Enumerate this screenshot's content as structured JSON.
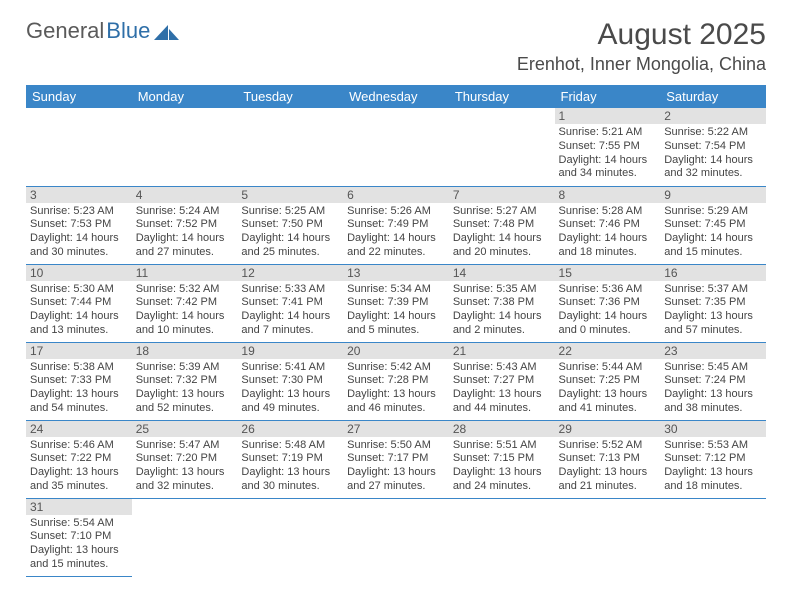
{
  "logo": {
    "text1": "General",
    "text2": "Blue"
  },
  "title": "August 2025",
  "location": "Erenhot, Inner Mongolia, China",
  "colors": {
    "header_bg": "#3a86c8",
    "header_text": "#ffffff",
    "daynum_bg": "#e2e2e2",
    "row_divider": "#3a86c8",
    "logo_gray": "#5a5a5a",
    "logo_blue": "#2f6fa8"
  },
  "typography": {
    "title_fontsize": 30,
    "location_fontsize": 18,
    "header_fontsize": 13,
    "daynum_fontsize": 12,
    "body_fontsize": 11
  },
  "weekdays": [
    "Sunday",
    "Monday",
    "Tuesday",
    "Wednesday",
    "Thursday",
    "Friday",
    "Saturday"
  ],
  "lead_empty": 5,
  "trail_empty": 6,
  "days": [
    {
      "n": "1",
      "sunrise": "Sunrise: 5:21 AM",
      "sunset": "Sunset: 7:55 PM",
      "daylight": "Daylight: 14 hours and 34 minutes."
    },
    {
      "n": "2",
      "sunrise": "Sunrise: 5:22 AM",
      "sunset": "Sunset: 7:54 PM",
      "daylight": "Daylight: 14 hours and 32 minutes."
    },
    {
      "n": "3",
      "sunrise": "Sunrise: 5:23 AM",
      "sunset": "Sunset: 7:53 PM",
      "daylight": "Daylight: 14 hours and 30 minutes."
    },
    {
      "n": "4",
      "sunrise": "Sunrise: 5:24 AM",
      "sunset": "Sunset: 7:52 PM",
      "daylight": "Daylight: 14 hours and 27 minutes."
    },
    {
      "n": "5",
      "sunrise": "Sunrise: 5:25 AM",
      "sunset": "Sunset: 7:50 PM",
      "daylight": "Daylight: 14 hours and 25 minutes."
    },
    {
      "n": "6",
      "sunrise": "Sunrise: 5:26 AM",
      "sunset": "Sunset: 7:49 PM",
      "daylight": "Daylight: 14 hours and 22 minutes."
    },
    {
      "n": "7",
      "sunrise": "Sunrise: 5:27 AM",
      "sunset": "Sunset: 7:48 PM",
      "daylight": "Daylight: 14 hours and 20 minutes."
    },
    {
      "n": "8",
      "sunrise": "Sunrise: 5:28 AM",
      "sunset": "Sunset: 7:46 PM",
      "daylight": "Daylight: 14 hours and 18 minutes."
    },
    {
      "n": "9",
      "sunrise": "Sunrise: 5:29 AM",
      "sunset": "Sunset: 7:45 PM",
      "daylight": "Daylight: 14 hours and 15 minutes."
    },
    {
      "n": "10",
      "sunrise": "Sunrise: 5:30 AM",
      "sunset": "Sunset: 7:44 PM",
      "daylight": "Daylight: 14 hours and 13 minutes."
    },
    {
      "n": "11",
      "sunrise": "Sunrise: 5:32 AM",
      "sunset": "Sunset: 7:42 PM",
      "daylight": "Daylight: 14 hours and 10 minutes."
    },
    {
      "n": "12",
      "sunrise": "Sunrise: 5:33 AM",
      "sunset": "Sunset: 7:41 PM",
      "daylight": "Daylight: 14 hours and 7 minutes."
    },
    {
      "n": "13",
      "sunrise": "Sunrise: 5:34 AM",
      "sunset": "Sunset: 7:39 PM",
      "daylight": "Daylight: 14 hours and 5 minutes."
    },
    {
      "n": "14",
      "sunrise": "Sunrise: 5:35 AM",
      "sunset": "Sunset: 7:38 PM",
      "daylight": "Daylight: 14 hours and 2 minutes."
    },
    {
      "n": "15",
      "sunrise": "Sunrise: 5:36 AM",
      "sunset": "Sunset: 7:36 PM",
      "daylight": "Daylight: 14 hours and 0 minutes."
    },
    {
      "n": "16",
      "sunrise": "Sunrise: 5:37 AM",
      "sunset": "Sunset: 7:35 PM",
      "daylight": "Daylight: 13 hours and 57 minutes."
    },
    {
      "n": "17",
      "sunrise": "Sunrise: 5:38 AM",
      "sunset": "Sunset: 7:33 PM",
      "daylight": "Daylight: 13 hours and 54 minutes."
    },
    {
      "n": "18",
      "sunrise": "Sunrise: 5:39 AM",
      "sunset": "Sunset: 7:32 PM",
      "daylight": "Daylight: 13 hours and 52 minutes."
    },
    {
      "n": "19",
      "sunrise": "Sunrise: 5:41 AM",
      "sunset": "Sunset: 7:30 PM",
      "daylight": "Daylight: 13 hours and 49 minutes."
    },
    {
      "n": "20",
      "sunrise": "Sunrise: 5:42 AM",
      "sunset": "Sunset: 7:28 PM",
      "daylight": "Daylight: 13 hours and 46 minutes."
    },
    {
      "n": "21",
      "sunrise": "Sunrise: 5:43 AM",
      "sunset": "Sunset: 7:27 PM",
      "daylight": "Daylight: 13 hours and 44 minutes."
    },
    {
      "n": "22",
      "sunrise": "Sunrise: 5:44 AM",
      "sunset": "Sunset: 7:25 PM",
      "daylight": "Daylight: 13 hours and 41 minutes."
    },
    {
      "n": "23",
      "sunrise": "Sunrise: 5:45 AM",
      "sunset": "Sunset: 7:24 PM",
      "daylight": "Daylight: 13 hours and 38 minutes."
    },
    {
      "n": "24",
      "sunrise": "Sunrise: 5:46 AM",
      "sunset": "Sunset: 7:22 PM",
      "daylight": "Daylight: 13 hours and 35 minutes."
    },
    {
      "n": "25",
      "sunrise": "Sunrise: 5:47 AM",
      "sunset": "Sunset: 7:20 PM",
      "daylight": "Daylight: 13 hours and 32 minutes."
    },
    {
      "n": "26",
      "sunrise": "Sunrise: 5:48 AM",
      "sunset": "Sunset: 7:19 PM",
      "daylight": "Daylight: 13 hours and 30 minutes."
    },
    {
      "n": "27",
      "sunrise": "Sunrise: 5:50 AM",
      "sunset": "Sunset: 7:17 PM",
      "daylight": "Daylight: 13 hours and 27 minutes."
    },
    {
      "n": "28",
      "sunrise": "Sunrise: 5:51 AM",
      "sunset": "Sunset: 7:15 PM",
      "daylight": "Daylight: 13 hours and 24 minutes."
    },
    {
      "n": "29",
      "sunrise": "Sunrise: 5:52 AM",
      "sunset": "Sunset: 7:13 PM",
      "daylight": "Daylight: 13 hours and 21 minutes."
    },
    {
      "n": "30",
      "sunrise": "Sunrise: 5:53 AM",
      "sunset": "Sunset: 7:12 PM",
      "daylight": "Daylight: 13 hours and 18 minutes."
    },
    {
      "n": "31",
      "sunrise": "Sunrise: 5:54 AM",
      "sunset": "Sunset: 7:10 PM",
      "daylight": "Daylight: 13 hours and 15 minutes."
    }
  ]
}
